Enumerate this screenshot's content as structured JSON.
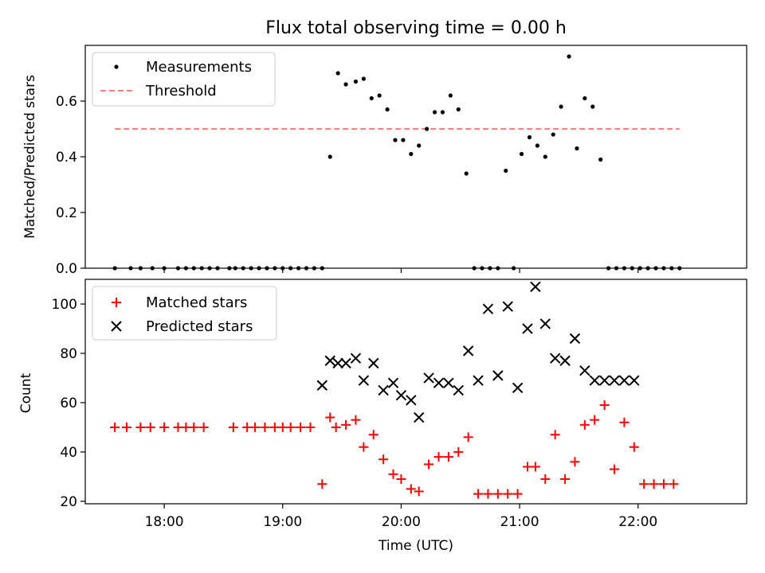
{
  "figure": {
    "title": "Flux total observing time = 0.00 h"
  },
  "colors": {
    "measurement": "#000000",
    "threshold": "#ff7f7f",
    "matched": "#ff0000",
    "predicted": "#000000"
  },
  "chart_data": [
    {
      "type": "scatter",
      "panel": "top",
      "title": "Flux total observing time = 0.00 h",
      "xlabel": "",
      "ylabel": "Matched/Predicted stars",
      "ylim": [
        0,
        0.8
      ],
      "yticks": [
        0.0,
        0.2,
        0.4,
        0.6
      ],
      "ytick_labels": [
        "0.0",
        "0.2",
        "0.4",
        "0.6"
      ],
      "x_tick_labels_shown": false,
      "legend": {
        "placement": "top-left",
        "entries": [
          "Measurements",
          "Threshold"
        ]
      },
      "grid": false,
      "series": [
        {
          "name": "Measurements",
          "kind": "scatter-dot",
          "x": [
            "17:35",
            "17:43",
            "17:48",
            "17:54",
            "18:00",
            "18:07",
            "18:11",
            "18:15",
            "18:19",
            "18:23",
            "18:27",
            "18:33",
            "18:36",
            "18:40",
            "18:44",
            "18:48",
            "18:52",
            "18:56",
            "19:00",
            "19:04",
            "19:08",
            "19:12",
            "19:16",
            "19:20",
            "19:24",
            "19:28",
            "19:32",
            "19:37",
            "19:41",
            "19:45",
            "19:49",
            "19:53",
            "19:57",
            "20:01",
            "20:05",
            "20:09",
            "20:13",
            "20:17",
            "20:21",
            "20:25",
            "20:29",
            "20:33",
            "20:37",
            "20:41",
            "20:45",
            "20:49",
            "20:53",
            "20:57",
            "21:01",
            "21:05",
            "21:09",
            "21:13",
            "21:17",
            "21:21",
            "21:25",
            "21:29",
            "21:33",
            "21:37",
            "21:41",
            "21:45",
            "21:49",
            "21:53",
            "21:57",
            "22:01",
            "22:05",
            "22:09",
            "22:13",
            "22:17",
            "22:21"
          ],
          "y": [
            0,
            0,
            0,
            0,
            0,
            0,
            0,
            0,
            0,
            0,
            0,
            0,
            0,
            0,
            0,
            0,
            0,
            0,
            0,
            0,
            0,
            0,
            0,
            0,
            0.4,
            0.7,
            0.66,
            0.67,
            0.68,
            0.61,
            0.62,
            0.57,
            0.46,
            0.46,
            0.41,
            0.44,
            0.5,
            0.56,
            0.56,
            0.62,
            0.57,
            0.34,
            0,
            0,
            0,
            0,
            0.35,
            0,
            0.41,
            0.47,
            0.44,
            0.4,
            0.48,
            0.58,
            0.76,
            0.43,
            0.61,
            0.58,
            0.39,
            0,
            0,
            0,
            0,
            0,
            0,
            0,
            0,
            0,
            0
          ]
        },
        {
          "name": "Threshold",
          "kind": "dashed-line",
          "x": [
            "17:35",
            "22:21"
          ],
          "y": [
            0.5,
            0.5
          ]
        }
      ]
    },
    {
      "type": "scatter",
      "panel": "bottom",
      "xlabel": "Time (UTC)",
      "ylabel": "Count",
      "xlim": [
        "17:20",
        "22:55"
      ],
      "ylim": [
        19,
        110
      ],
      "xticks": [
        "18:00",
        "19:00",
        "20:00",
        "21:00",
        "22:00"
      ],
      "yticks": [
        20,
        40,
        60,
        80,
        100
      ],
      "legend": {
        "placement": "top-left",
        "entries": [
          "Matched stars",
          "Predicted stars"
        ]
      },
      "grid": false,
      "series": [
        {
          "name": "Matched stars",
          "kind": "plus",
          "x": [
            "17:35",
            "17:41",
            "17:48",
            "17:53",
            "18:00",
            "18:07",
            "18:11",
            "18:15",
            "18:20",
            "18:35",
            "18:42",
            "18:46",
            "18:51",
            "18:56",
            "19:00",
            "19:04",
            "19:09",
            "19:14",
            "19:20",
            "19:24",
            "19:27",
            "19:32",
            "19:37",
            "19:41",
            "19:46",
            "19:51",
            "19:56",
            "20:00",
            "20:05",
            "20:09",
            "20:14",
            "20:19",
            "20:24",
            "20:29",
            "20:34",
            "20:39",
            "20:44",
            "20:49",
            "20:54",
            "20:59",
            "21:04",
            "21:08",
            "21:13",
            "21:18",
            "21:23",
            "21:28",
            "21:33",
            "21:38",
            "21:43",
            "21:48",
            "21:53",
            "21:58",
            "22:03",
            "22:08",
            "22:13",
            "22:18"
          ],
          "y": [
            50,
            50,
            50,
            50,
            50,
            50,
            50,
            50,
            50,
            50,
            50,
            50,
            50,
            50,
            50,
            50,
            50,
            50,
            27,
            54,
            50,
            51,
            53,
            42,
            47,
            37,
            31,
            29,
            25,
            24,
            35,
            38,
            38,
            40,
            46,
            23,
            23,
            23,
            23,
            23,
            34,
            34,
            29,
            47,
            29,
            36,
            51,
            53,
            59,
            33,
            52,
            42,
            27,
            27,
            27,
            27
          ]
        },
        {
          "name": "Predicted stars",
          "kind": "cross",
          "x": [
            "19:20",
            "19:24",
            "19:28",
            "19:32",
            "19:37",
            "19:41",
            "19:46",
            "19:51",
            "19:56",
            "20:00",
            "20:05",
            "20:09",
            "20:14",
            "20:19",
            "20:24",
            "20:29",
            "20:34",
            "20:39",
            "20:44",
            "20:49",
            "20:54",
            "20:59",
            "21:04",
            "21:08",
            "21:13",
            "21:18",
            "21:23",
            "21:28",
            "21:33",
            "21:38",
            "21:43",
            "21:48",
            "21:53",
            "21:58"
          ],
          "y": [
            67,
            77,
            76,
            76,
            78,
            69,
            76,
            65,
            68,
            63,
            61,
            54,
            70,
            68,
            68,
            65,
            81,
            69,
            98,
            71,
            99,
            66,
            90,
            107,
            92,
            78,
            77,
            86,
            73,
            69,
            69,
            69,
            69,
            69
          ]
        }
      ]
    }
  ]
}
